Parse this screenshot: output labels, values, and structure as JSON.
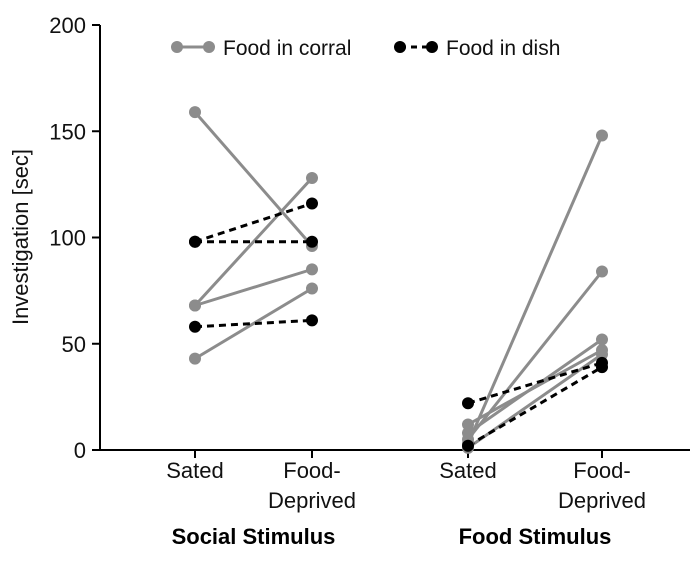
{
  "chart_data": {
    "type": "line",
    "ylabel": "Investigation [sec]",
    "ylim": [
      0,
      200
    ],
    "yticks": [
      0,
      50,
      100,
      150,
      200
    ],
    "categories": [
      "Sated",
      "Food-Deprived",
      "Sated",
      "Food-Deprived"
    ],
    "category_lines": [
      [
        "Sated"
      ],
      [
        "Food-",
        "Deprived"
      ],
      [
        "Sated"
      ],
      [
        "Food-",
        "Deprived"
      ]
    ],
    "groups": [
      {
        "label": "Social Stimulus",
        "categories": [
          0,
          1
        ]
      },
      {
        "label": "Food Stimulus",
        "categories": [
          2,
          3
        ]
      }
    ],
    "legend": {
      "position": "top",
      "entries": [
        {
          "name": "Food in corral",
          "series": "corral"
        },
        {
          "name": "Food in dish",
          "series": "dish"
        }
      ]
    },
    "series": [
      {
        "name": "Food in corral",
        "key": "corral",
        "color": "#8c8c8c",
        "dashed": false,
        "pairs": [
          {
            "group": 0,
            "values": [
              159,
              96
            ]
          },
          {
            "group": 0,
            "values": [
              68,
              128
            ]
          },
          {
            "group": 0,
            "values": [
              68,
              85
            ]
          },
          {
            "group": 0,
            "values": [
              43,
              76
            ]
          },
          {
            "group": 1,
            "values": [
              3,
              148
            ]
          },
          {
            "group": 1,
            "values": [
              5,
              84
            ]
          },
          {
            "group": 1,
            "values": [
              8,
              52
            ]
          },
          {
            "group": 1,
            "values": [
              12,
              47
            ]
          },
          {
            "group": 1,
            "values": [
              1,
              45
            ]
          }
        ]
      },
      {
        "name": "Food in dish",
        "key": "dish",
        "color": "#000000",
        "dashed": true,
        "pairs": [
          {
            "group": 0,
            "values": [
              98,
              116
            ]
          },
          {
            "group": 0,
            "values": [
              98,
              98
            ]
          },
          {
            "group": 0,
            "values": [
              58,
              61
            ]
          },
          {
            "group": 1,
            "values": [
              22,
              41
            ]
          },
          {
            "group": 1,
            "values": [
              2,
              39
            ]
          }
        ]
      }
    ]
  }
}
